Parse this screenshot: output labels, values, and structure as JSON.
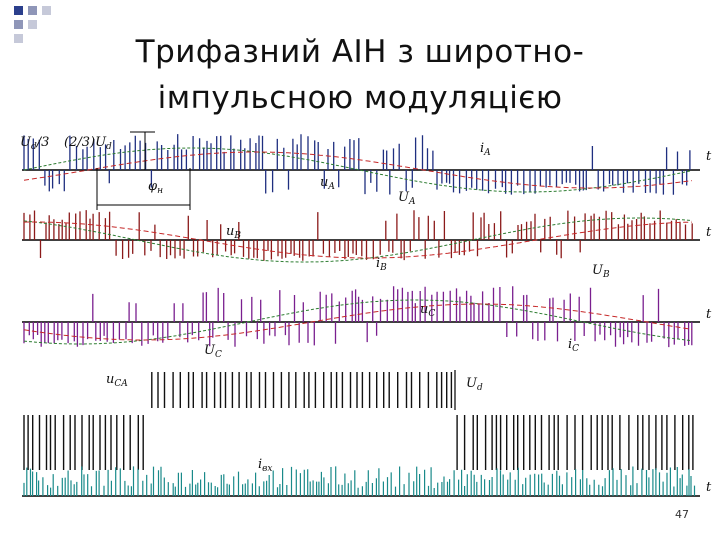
{
  "title_lines": [
    "Трифазний АІН з широтно-",
    "імпульсною модуляцією"
  ],
  "page_number": "47",
  "axis_label": "t",
  "labels": [
    {
      "base": "U",
      "sub": "d",
      "tail": "/3"
    },
    {
      "head": "(2/3)",
      "base": "U",
      "sub": "d"
    },
    {
      "base": "φ",
      "sub": "н"
    },
    {
      "base": "i",
      "sub": "A"
    },
    {
      "base": "u",
      "sub": "A"
    },
    {
      "base": "U",
      "sub": "A"
    },
    {
      "base": "u",
      "sub": "B"
    },
    {
      "base": "i",
      "sub": "B"
    },
    {
      "base": "U",
      "sub": "B"
    },
    {
      "base": "u",
      "sub": "C"
    },
    {
      "base": "U",
      "sub": "C"
    },
    {
      "base": "i",
      "sub": "C"
    },
    {
      "base": "u",
      "sub": "CA"
    },
    {
      "base": "U",
      "sub": "d"
    },
    {
      "base": "i",
      "sub": "вх"
    }
  ]
}
